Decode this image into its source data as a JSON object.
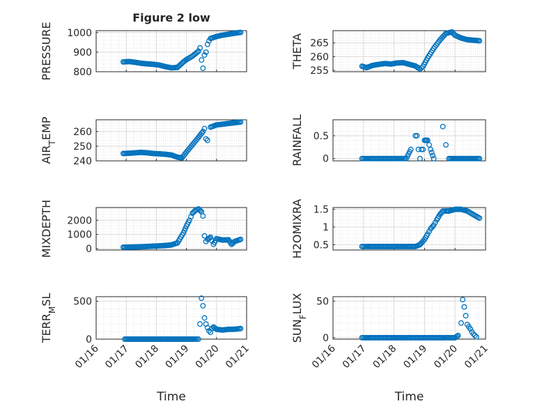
{
  "figure": {
    "title": "Figure 2 low",
    "background": "#ffffff",
    "marker_color": "#0072BD",
    "grid_color": "#d9d9d9",
    "axis_color": "#262626"
  },
  "chart_data": [
    {
      "type": "scatter",
      "title": "Figure 2 low",
      "ylabel": "PRESSURE",
      "xlabel": "",
      "xlim": [
        16,
        21
      ],
      "ylim": [
        800,
        1010
      ],
      "yticks": [
        800,
        900,
        1000
      ],
      "xticks": [
        16,
        17,
        18,
        19,
        20,
        21
      ],
      "xticklabels": [],
      "grid": true,
      "x": [
        16.9,
        17.1,
        17.3,
        17.5,
        17.7,
        17.9,
        18.1,
        18.3,
        18.5,
        18.7,
        18.9,
        19.0,
        19.2,
        19.4,
        19.45,
        19.5,
        19.55,
        19.6,
        19.65,
        19.7,
        19.75,
        19.8,
        20.0,
        20.2,
        20.4,
        20.6,
        20.8
      ],
      "y": [
        850,
        852,
        848,
        843,
        840,
        838,
        834,
        826,
        820,
        822,
        850,
        862,
        880,
        905,
        922,
        860,
        818,
        885,
        900,
        940,
        958,
        970,
        980,
        987,
        992,
        997,
        1001
      ]
    },
    {
      "type": "scatter",
      "ylabel": "THETA",
      "xlabel": "",
      "xlim": [
        16,
        21
      ],
      "ylim": [
        254.5,
        269.5
      ],
      "yticks": [
        255,
        260,
        265
      ],
      "xticks": [
        16,
        17,
        18,
        19,
        20,
        21
      ],
      "xticklabels": [],
      "grid": true,
      "x": [
        16.95,
        17.1,
        17.3,
        17.5,
        17.7,
        17.9,
        18.1,
        18.3,
        18.5,
        18.7,
        18.85,
        18.95,
        19.1,
        19.3,
        19.5,
        19.7,
        19.9,
        20.0,
        20.2,
        20.4,
        20.6,
        20.8
      ],
      "y": [
        256.5,
        256.0,
        256.8,
        257.2,
        257.5,
        257.3,
        257.7,
        257.8,
        257.2,
        256.6,
        255.5,
        256.4,
        259.5,
        263.0,
        266.0,
        268.5,
        269.0,
        267.8,
        266.8,
        266.2,
        266.0,
        265.8
      ]
    },
    {
      "type": "scatter",
      "ylabel": "AIR_TEMP",
      "xlabel": "",
      "xlim": [
        16,
        21
      ],
      "ylim": [
        240,
        268
      ],
      "yticks": [
        240,
        250,
        260
      ],
      "xticks": [
        16,
        17,
        18,
        19,
        20,
        21
      ],
      "xticklabels": [],
      "grid": true,
      "x": [
        16.9,
        17.1,
        17.3,
        17.5,
        17.7,
        17.9,
        18.1,
        18.3,
        18.5,
        18.7,
        18.85,
        19.0,
        19.2,
        19.4,
        19.55,
        19.6,
        19.65,
        19.7,
        19.8,
        20.0,
        20.2,
        20.4,
        20.6,
        20.8
      ],
      "y": [
        245,
        245.2,
        245.5,
        245.8,
        245.5,
        245,
        244.8,
        244.5,
        244,
        242.5,
        242,
        246,
        251,
        256,
        260,
        262,
        255,
        254,
        263,
        264.5,
        265,
        265.5,
        266,
        266.5
      ]
    },
    {
      "type": "scatter",
      "ylabel": "RAINFALL",
      "xlabel": "",
      "xlim": [
        16,
        21
      ],
      "ylim": [
        -0.05,
        0.85
      ],
      "yticks": [
        0,
        0.5
      ],
      "xticks": [
        16,
        17,
        18,
        19,
        20,
        21
      ],
      "xticklabels": [],
      "grid": true,
      "x": [
        16.95,
        17.2,
        17.5,
        17.8,
        18.1,
        18.4,
        18.55,
        18.7,
        18.75,
        18.8,
        18.85,
        18.9,
        18.95,
        19.0,
        19.1,
        19.2,
        19.3,
        19.6,
        19.7,
        19.8,
        20.0,
        20.2,
        20.4,
        20.6,
        20.8
      ],
      "y": [
        0,
        0,
        0,
        0,
        0,
        0,
        0.2,
        0.5,
        0.5,
        0.2,
        0,
        0.2,
        0.2,
        0.4,
        0.4,
        0.2,
        0,
        0.7,
        0.3,
        0,
        0,
        0,
        0,
        0,
        0
      ]
    },
    {
      "type": "scatter",
      "ylabel": "MIXDEPTH",
      "xlabel": "",
      "xlim": [
        16,
        21
      ],
      "ylim": [
        -100,
        2900
      ],
      "yticks": [
        0,
        1000,
        2000
      ],
      "xticks": [
        16,
        17,
        18,
        19,
        20,
        21
      ],
      "xticklabels": [],
      "grid": true,
      "x": [
        16.9,
        17.1,
        17.3,
        17.5,
        17.7,
        17.9,
        18.1,
        18.3,
        18.5,
        18.7,
        18.9,
        19.0,
        19.1,
        19.2,
        19.3,
        19.4,
        19.5,
        19.55,
        19.6,
        19.65,
        19.7,
        19.8,
        19.9,
        20.0,
        20.2,
        20.4,
        20.5,
        20.6,
        20.8
      ],
      "y": [
        100,
        110,
        120,
        130,
        150,
        170,
        190,
        220,
        260,
        400,
        1100,
        1600,
        2000,
        2500,
        2700,
        2800,
        2600,
        2300,
        900,
        500,
        650,
        800,
        300,
        700,
        600,
        620,
        300,
        500,
        650
      ]
    },
    {
      "type": "scatter",
      "ylabel": "H2OMIXRA",
      "xlabel": "",
      "xlim": [
        16,
        21
      ],
      "ylim": [
        0.35,
        1.55
      ],
      "yticks": [
        0.5,
        1,
        1.5
      ],
      "xticks": [
        16,
        17,
        18,
        19,
        20,
        21
      ],
      "xticklabels": [],
      "grid": true,
      "x": [
        16.95,
        17.2,
        17.5,
        17.8,
        18.1,
        18.4,
        18.7,
        18.85,
        19.0,
        19.1,
        19.2,
        19.3,
        19.4,
        19.5,
        19.6,
        19.7,
        19.8,
        20.0,
        20.2,
        20.4,
        20.6,
        20.8
      ],
      "y": [
        0.45,
        0.45,
        0.45,
        0.45,
        0.45,
        0.45,
        0.45,
        0.5,
        0.65,
        0.8,
        0.95,
        1.05,
        1.2,
        1.35,
        1.45,
        1.45,
        1.45,
        1.5,
        1.5,
        1.45,
        1.35,
        1.25
      ]
    },
    {
      "type": "scatter",
      "ylabel": "TERR_MSL",
      "xlabel": "Time",
      "xlim": [
        16,
        21
      ],
      "ylim": [
        0,
        560
      ],
      "yticks": [
        0,
        500
      ],
      "xticks": [
        16,
        17,
        18,
        19,
        20,
        21
      ],
      "xticklabels": [
        "01/16",
        "01/17",
        "01/18",
        "01/19",
        "01/20",
        "01/21"
      ],
      "grid": true,
      "x": [
        16.95,
        17.2,
        17.5,
        17.8,
        18.1,
        18.4,
        18.7,
        19.0,
        19.3,
        19.4,
        19.45,
        19.5,
        19.55,
        19.6,
        19.65,
        19.7,
        19.75,
        19.8,
        19.85,
        19.9,
        20.0,
        20.2,
        20.4,
        20.6,
        20.8
      ],
      "y": [
        0,
        0,
        0,
        0,
        0,
        0,
        0,
        0,
        0,
        0,
        200,
        540,
        440,
        280,
        200,
        150,
        110,
        90,
        140,
        160,
        130,
        120,
        130,
        130,
        140
      ]
    },
    {
      "type": "scatter",
      "ylabel": "SUN_FLUX",
      "xlabel": "Time",
      "xlim": [
        16,
        21
      ],
      "ylim": [
        -2,
        56
      ],
      "yticks": [
        0,
        50
      ],
      "xticks": [
        16,
        17,
        18,
        19,
        20,
        21
      ],
      "xticklabels": [
        "01/16",
        "01/17",
        "01/18",
        "01/19",
        "01/20",
        "01/21"
      ],
      "grid": true,
      "x": [
        16.95,
        17.2,
        17.5,
        17.8,
        18.1,
        18.4,
        18.7,
        19.0,
        19.3,
        19.6,
        19.9,
        20.0,
        20.1,
        20.2,
        20.25,
        20.3,
        20.35,
        20.4,
        20.45,
        20.5,
        20.55,
        20.6,
        20.7
      ],
      "y": [
        0,
        0,
        0,
        0,
        0,
        0,
        0,
        0,
        0,
        0,
        0,
        0,
        3,
        20,
        52,
        42,
        30,
        18,
        15,
        12,
        8,
        5,
        1
      ]
    }
  ]
}
